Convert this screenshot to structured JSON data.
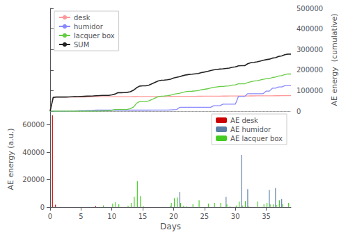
{
  "chart_data": [
    {
      "type": "line",
      "x": [
        0.0,
        0.5,
        1.0,
        1.5,
        2.0,
        2.5,
        3.0,
        3.5,
        4.0,
        4.5,
        5.0,
        5.5,
        6.0,
        6.5,
        7.0,
        7.5,
        8.0,
        8.5,
        9.0,
        9.5,
        10.0,
        10.5,
        11.0,
        11.5,
        12.0,
        12.5,
        13.0,
        13.5,
        14.0,
        14.5,
        15.0,
        15.5,
        16.0,
        16.5,
        17.0,
        17.5,
        18.0,
        18.5,
        19.0,
        19.5,
        20.0,
        20.5,
        21.0,
        21.5,
        22.0,
        22.5,
        23.0,
        23.5,
        24.0,
        24.5,
        25.0,
        25.5,
        26.0,
        26.5,
        27.0,
        27.5,
        28.0,
        28.5,
        29.0,
        29.5,
        30.0,
        30.5,
        31.0,
        31.5,
        32.0,
        32.5,
        33.0,
        33.5,
        34.0,
        34.5,
        35.0,
        35.5,
        36.0,
        36.5,
        37.0,
        37.5,
        38.0,
        38.5,
        39.0
      ],
      "series": [
        {
          "name": "desk",
          "color": "#ff9999",
          "values": [
            0,
            67000,
            68800,
            68800,
            68800,
            68800,
            68800,
            68900,
            69000,
            69100,
            69200,
            69300,
            69400,
            69500,
            69600,
            70400,
            70400,
            70400,
            70400,
            70400,
            70400,
            70400,
            70400,
            70500,
            70600,
            70700,
            70800,
            70900,
            71000,
            71100,
            71200,
            71200,
            71300,
            71400,
            71400,
            71500,
            71600,
            71600,
            71700,
            71800,
            71900,
            72000,
            72000,
            72100,
            72200,
            72300,
            72400,
            72500,
            72600,
            72700,
            72800,
            72900,
            73000,
            73100,
            73200,
            73300,
            73400,
            73500,
            73600,
            73700,
            73800,
            73900,
            74000,
            74100,
            74200,
            74300,
            74400,
            74500,
            74600,
            74700,
            74800,
            74900,
            75000,
            75100,
            75200,
            75300,
            75400,
            75500,
            75600
          ]
        },
        {
          "name": "humidor",
          "color": "#8888ff",
          "values": [
            0,
            0,
            0,
            0,
            0,
            0,
            500,
            1000,
            1500,
            2000,
            2500,
            3000,
            3500,
            4000,
            4500,
            5000,
            5000,
            5000,
            5000,
            5000,
            5000,
            5000,
            5000,
            5000,
            5000,
            5000,
            5000,
            5000,
            5000,
            5000,
            5000,
            5000,
            5100,
            5200,
            5300,
            5400,
            5500,
            5600,
            5700,
            6500,
            7300,
            8100,
            19100,
            19100,
            19100,
            19100,
            19100,
            19100,
            19100,
            19100,
            19100,
            19100,
            19100,
            26600,
            26600,
            26600,
            34100,
            34100,
            34100,
            34100,
            34100,
            72100,
            72100,
            72100,
            85100,
            85100,
            85100,
            85100,
            85100,
            85100,
            97600,
            97600,
            111600,
            111600,
            117600,
            117600,
            123600,
            123600,
            123600
          ]
        },
        {
          "name": "lacquer box",
          "color": "#66cc44",
          "values": [
            0,
            0,
            0,
            0,
            0,
            0,
            0,
            0,
            0,
            0,
            0,
            0,
            0,
            0,
            0,
            0,
            500,
            1700,
            1700,
            1700,
            4200,
            7700,
            7700,
            7700,
            8200,
            9200,
            12200,
            19700,
            38700,
            46700,
            47200,
            47200,
            50200,
            56700,
            63700,
            70200,
            73200,
            74200,
            75700,
            77700,
            82700,
            85200,
            87700,
            91700,
            94700,
            96700,
            97200,
            98700,
            99900,
            103900,
            106400,
            108900,
            112900,
            115900,
            117900,
            119900,
            120400,
            121900,
            123100,
            127100,
            128300,
            132800,
            133300,
            133300,
            139300,
            143300,
            146300,
            148300,
            151300,
            155300,
            157300,
            158800,
            163800,
            165800,
            170800,
            172800,
            177800,
            180800,
            180800
          ]
        },
        {
          "name": "SUM",
          "color": "#222222",
          "values": [
            0,
            67000,
            68800,
            68800,
            68800,
            68800,
            69300,
            69900,
            70500,
            71100,
            71700,
            72300,
            72900,
            73500,
            74100,
            75400,
            75900,
            77100,
            77100,
            77100,
            79600,
            83100,
            90100,
            90100,
            90600,
            91600,
            94600,
            102100,
            114000,
            122000,
            123500,
            123500,
            126800,
            133300,
            140300,
            147200,
            150200,
            151200,
            152700,
            155500,
            161200,
            165000,
            168200,
            172700,
            176200,
            178700,
            179700,
            181700,
            183100,
            187600,
            190400,
            193400,
            197400,
            200900,
            202900,
            204900,
            205900,
            207900,
            209600,
            213600,
            215300,
            220300,
            221300,
            221400,
            230400,
            235400,
            237400,
            239900,
            243400,
            247400,
            250400,
            252900,
            257900,
            260400,
            266400,
            268400,
            274400,
            277400,
            277400
          ]
        }
      ],
      "xlim": [
        0,
        39
      ],
      "ylim": [
        0,
        500000
      ],
      "yticks": [
        0,
        100000,
        200000,
        300000,
        400000,
        500000
      ],
      "ylabel": "AE energy  (cumulative)",
      "legend": "upper left",
      "tick_labels": "y",
      "grid": false
    },
    {
      "type": "bar",
      "x": [
        0.5,
        1.0,
        2.0,
        7.5,
        8.5,
        9.5,
        10.0,
        10.5,
        11.0,
        12.5,
        13.0,
        13.5,
        14.0,
        14.5,
        15.0,
        19.5,
        20.0,
        20.5,
        21.0,
        21.5,
        22.0,
        23.0,
        24.0,
        25.5,
        26.5,
        27.5,
        28.5,
        29.0,
        30.0,
        30.5,
        31.0,
        31.5,
        32.0,
        32.5,
        33.5,
        34.5,
        35.0,
        35.5,
        36.0,
        36.5,
        37.0,
        37.5,
        38.5
      ],
      "series": [
        {
          "name": "AE desk",
          "color": "#cc0000",
          "values": [
            67000,
            1800,
            0,
            800,
            0,
            0,
            0,
            0,
            0,
            0,
            0,
            0,
            0,
            0,
            0,
            0,
            0,
            0,
            0,
            0,
            0,
            0,
            0,
            0,
            0,
            0,
            0,
            0,
            0,
            0,
            0,
            0,
            0,
            0,
            0,
            0,
            0,
            0,
            0,
            0,
            0,
            0,
            0
          ]
        },
        {
          "name": "AE humidor",
          "color": "#5b7fa6",
          "values": [
            0,
            0,
            0,
            0,
            0,
            0,
            0,
            0,
            0,
            0,
            0,
            0,
            0,
            0,
            0,
            800,
            0,
            0,
            11000,
            0,
            0,
            0,
            0,
            0,
            0,
            0,
            7500,
            0,
            0,
            0,
            38000,
            0,
            13000,
            0,
            0,
            0,
            0,
            12500,
            0,
            14000,
            0,
            6000,
            0
          ]
        },
        {
          "name": "AE lacquer box",
          "color": "#44cc22",
          "values": [
            0,
            0,
            0,
            0,
            1200,
            0,
            2500,
            3500,
            2000,
            1000,
            3000,
            7500,
            19000,
            8000,
            500,
            3000,
            6500,
            7000,
            3000,
            1000,
            500,
            2000,
            5000,
            2500,
            3000,
            3000,
            2000,
            500,
            1200,
            4000,
            1200,
            4500,
            500,
            0,
            4000,
            2000,
            3000,
            2000,
            2000,
            1500,
            5000,
            2000,
            3000
          ]
        }
      ],
      "xlim": [
        0,
        39
      ],
      "xticks": [
        0,
        5,
        10,
        15,
        20,
        25,
        30,
        35
      ],
      "ylim": [
        0,
        70000
      ],
      "yticks": [
        0,
        20000,
        40000,
        60000
      ],
      "xlabel": "Days",
      "ylabel": "AE energy (a.u.)",
      "legend": "upper right",
      "grid": false
    }
  ]
}
